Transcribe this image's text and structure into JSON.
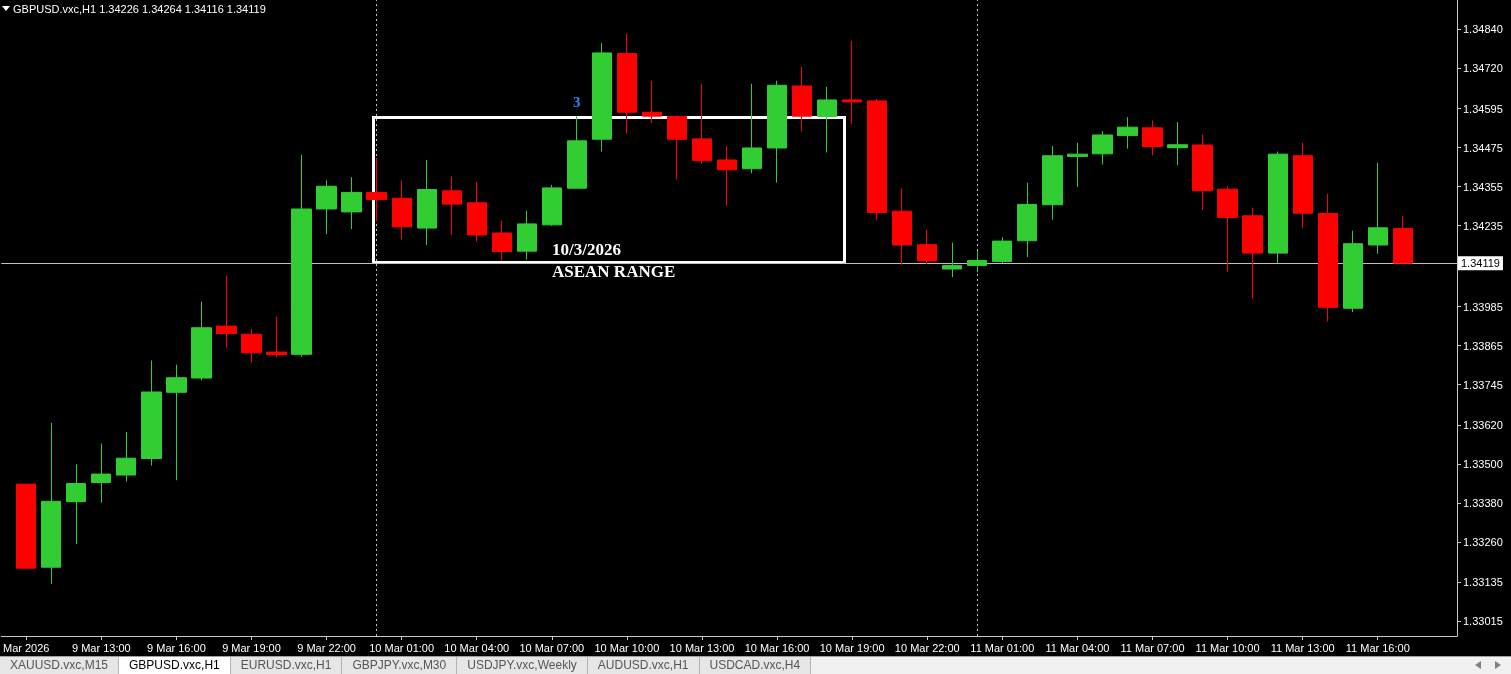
{
  "chart_data": {
    "type": "candlestick",
    "title": "GBPUSD.vxc,H1 1.34226 1.34264 1.34116 1.34119",
    "x": [
      "2026-03-09T10:00",
      "2026-03-09T11:00",
      "2026-03-09T12:00",
      "2026-03-09T13:00",
      "2026-03-09T14:00",
      "2026-03-09T15:00",
      "2026-03-09T16:00",
      "2026-03-09T17:00",
      "2026-03-09T18:00",
      "2026-03-09T19:00",
      "2026-03-09T20:00",
      "2026-03-09T21:00",
      "2026-03-09T22:00",
      "2026-03-09T23:00",
      "2026-03-10T00:00",
      "2026-03-10T01:00",
      "2026-03-10T02:00",
      "2026-03-10T03:00",
      "2026-03-10T04:00",
      "2026-03-10T05:00",
      "2026-03-10T06:00",
      "2026-03-10T07:00",
      "2026-03-10T08:00",
      "2026-03-10T09:00",
      "2026-03-10T10:00",
      "2026-03-10T11:00",
      "2026-03-10T12:00",
      "2026-03-10T13:00",
      "2026-03-10T14:00",
      "2026-03-10T15:00",
      "2026-03-10T16:00",
      "2026-03-10T17:00",
      "2026-03-10T18:00",
      "2026-03-10T19:00",
      "2026-03-10T20:00",
      "2026-03-10T21:00",
      "2026-03-10T22:00",
      "2026-03-10T23:00",
      "2026-03-11T00:00",
      "2026-03-11T01:00",
      "2026-03-11T02:00",
      "2026-03-11T03:00",
      "2026-03-11T04:00",
      "2026-03-11T05:00",
      "2026-03-11T06:00",
      "2026-03-11T07:00",
      "2026-03-11T08:00",
      "2026-03-11T09:00",
      "2026-03-11T10:00",
      "2026-03-11T11:00",
      "2026-03-11T12:00",
      "2026-03-11T13:00",
      "2026-03-11T14:00",
      "2026-03-11T15:00",
      "2026-03-11T16:00",
      "2026-03-11T17:00"
    ],
    "ohlc": [
      [
        1.33438,
        1.33438,
        1.33179,
        1.33179
      ],
      [
        1.33182,
        1.33627,
        1.3313,
        1.33385
      ],
      [
        1.33384,
        1.33499,
        1.33253,
        1.3344
      ],
      [
        1.33443,
        1.33563,
        1.33381,
        1.33469
      ],
      [
        1.33466,
        1.33599,
        1.33446,
        1.33518
      ],
      [
        1.33517,
        1.33819,
        1.33495,
        1.33722
      ],
      [
        1.33721,
        1.33806,
        1.3345,
        1.33766
      ],
      [
        1.33765,
        1.34,
        1.33758,
        1.3392
      ],
      [
        1.33925,
        1.34081,
        1.33859,
        1.33902
      ],
      [
        1.339,
        1.33916,
        1.33813,
        1.33843
      ],
      [
        1.33845,
        1.33954,
        1.33828,
        1.33837
      ],
      [
        1.33838,
        1.34453,
        1.3383,
        1.34286
      ],
      [
        1.34286,
        1.34374,
        1.34209,
        1.34356
      ],
      [
        1.34277,
        1.34384,
        1.34224,
        1.34337
      ],
      [
        1.34337,
        1.34443,
        1.34249,
        1.34315
      ],
      [
        1.34319,
        1.34374,
        1.34192,
        1.34231
      ],
      [
        1.34227,
        1.34437,
        1.34175,
        1.34346
      ],
      [
        1.34342,
        1.34386,
        1.34206,
        1.34301
      ],
      [
        1.34305,
        1.34369,
        1.34186,
        1.34206
      ],
      [
        1.34212,
        1.3425,
        1.34127,
        1.34155
      ],
      [
        1.34156,
        1.3428,
        1.3413,
        1.3424
      ],
      [
        1.34237,
        1.3436,
        1.34234,
        1.34351
      ],
      [
        1.3435,
        1.34572,
        1.3435,
        1.34496
      ],
      [
        1.34501,
        1.34797,
        1.34463,
        1.34767
      ],
      [
        1.34765,
        1.34827,
        1.34518,
        1.34584
      ],
      [
        1.34584,
        1.34681,
        1.34551,
        1.34572
      ],
      [
        1.34571,
        1.34573,
        1.34377,
        1.34501
      ],
      [
        1.34502,
        1.34672,
        1.34425,
        1.34435
      ],
      [
        1.34437,
        1.3448,
        1.34297,
        1.34407
      ],
      [
        1.3441,
        1.34672,
        1.34396,
        1.34474
      ],
      [
        1.34474,
        1.34681,
        1.34367,
        1.34667
      ],
      [
        1.34665,
        1.34724,
        1.34525,
        1.34572
      ],
      [
        1.34571,
        1.34662,
        1.3446,
        1.34622
      ],
      [
        1.34622,
        1.34804,
        1.34548,
        1.34616
      ],
      [
        1.34619,
        1.34625,
        1.34253,
        1.34275
      ],
      [
        1.34279,
        1.34349,
        1.34113,
        1.34175
      ],
      [
        1.34176,
        1.34222,
        1.34116,
        1.34126
      ],
      [
        1.34101,
        1.34182,
        1.34076,
        1.34112
      ],
      [
        1.34112,
        1.34157,
        1.34091,
        1.34127
      ],
      [
        1.34124,
        1.34199,
        1.34119,
        1.34187
      ],
      [
        1.34188,
        1.34367,
        1.34138,
        1.343
      ],
      [
        1.34299,
        1.3448,
        1.34253,
        1.3445
      ],
      [
        1.34448,
        1.3449,
        1.34354,
        1.34455
      ],
      [
        1.34456,
        1.34526,
        1.34423,
        1.34514
      ],
      [
        1.34512,
        1.34569,
        1.34472,
        1.34538
      ],
      [
        1.34536,
        1.34559,
        1.34451,
        1.34478
      ],
      [
        1.34475,
        1.34554,
        1.34421,
        1.34484
      ],
      [
        1.34483,
        1.34515,
        1.34283,
        1.34343
      ],
      [
        1.34347,
        1.34357,
        1.34093,
        1.3426
      ],
      [
        1.34265,
        1.3429,
        1.34009,
        1.3415
      ],
      [
        1.3415,
        1.34463,
        1.34119,
        1.34455
      ],
      [
        1.3445,
        1.3449,
        1.34227,
        1.34273
      ],
      [
        1.34272,
        1.34332,
        1.33939,
        1.33983
      ],
      [
        1.3398,
        1.34219,
        1.33968,
        1.34179
      ],
      [
        1.34175,
        1.34428,
        1.34148,
        1.34228
      ],
      [
        1.34226,
        1.34264,
        1.34116,
        1.34119
      ]
    ],
    "colors": [
      "#ff0000",
      "#32cd32",
      "#32cd32",
      "#32cd32",
      "#32cd32",
      "#32cd32",
      "#32cd32",
      "#32cd32",
      "#ff0000",
      "#ff0000",
      "#ff0000",
      "#32cd32",
      "#32cd32",
      "#32cd32",
      "#ff0000",
      "#ff0000",
      "#32cd32",
      "#ff0000",
      "#ff0000",
      "#ff0000",
      "#32cd32",
      "#32cd32",
      "#32cd32",
      "#32cd32",
      "#ff0000",
      "#ff0000",
      "#ff0000",
      "#ff0000",
      "#ff0000",
      "#32cd32",
      "#32cd32",
      "#ff0000",
      "#32cd32",
      "#ff0000",
      "#ff0000",
      "#ff0000",
      "#ff0000",
      "#32cd32",
      "#32cd32",
      "#32cd32",
      "#32cd32",
      "#32cd32",
      "#32cd32",
      "#32cd32",
      "#32cd32",
      "#ff0000",
      "#32cd32",
      "#ff0000",
      "#ff0000",
      "#ff0000",
      "#32cd32",
      "#ff0000",
      "#ff0000",
      "#32cd32",
      "#32cd32",
      "#ff0000"
    ],
    "xlim": [
      "2026-03-09T09:00",
      "2026-03-11T19:10"
    ],
    "xticks": [
      {
        "value": "2026-03-09T10:00",
        "label": "Mar 2026"
      },
      {
        "value": "2026-03-09T13:00",
        "label": "9 Mar 13:00"
      },
      {
        "value": "2026-03-09T16:00",
        "label": "9 Mar 16:00"
      },
      {
        "value": "2026-03-09T19:00",
        "label": "9 Mar 19:00"
      },
      {
        "value": "2026-03-09T22:00",
        "label": "9 Mar 22:00"
      },
      {
        "value": "2026-03-10T01:00",
        "label": "10 Mar 01:00"
      },
      {
        "value": "2026-03-10T04:00",
        "label": "10 Mar 04:00"
      },
      {
        "value": "2026-03-10T07:00",
        "label": "10 Mar 07:00"
      },
      {
        "value": "2026-03-10T10:00",
        "label": "10 Mar 10:00"
      },
      {
        "value": "2026-03-10T13:00",
        "label": "10 Mar 13:00"
      },
      {
        "value": "2026-03-10T16:00",
        "label": "10 Mar 16:00"
      },
      {
        "value": "2026-03-10T19:00",
        "label": "10 Mar 19:00"
      },
      {
        "value": "2026-03-10T22:00",
        "label": "10 Mar 22:00"
      },
      {
        "value": "2026-03-11T01:00",
        "label": "11 Mar 01:00"
      },
      {
        "value": "2026-03-11T04:00",
        "label": "11 Mar 04:00"
      },
      {
        "value": "2026-03-11T07:00",
        "label": "11 Mar 07:00"
      },
      {
        "value": "2026-03-11T10:00",
        "label": "11 Mar 10:00"
      },
      {
        "value": "2026-03-11T13:00",
        "label": "11 Mar 13:00"
      },
      {
        "value": "2026-03-11T16:00",
        "label": "11 Mar 16:00"
      }
    ],
    "ylim": [
      1.3297,
      1.3493
    ],
    "yticks": [
      {
        "value": 1.3484,
        "label": "1.34840"
      },
      {
        "value": 1.3472,
        "label": "1.34720"
      },
      1.34595,
      1.34475,
      1.34355,
      1.34235,
      1.33985,
      1.33865,
      1.33745,
      {
        "value": 1.3362,
        "label": "1.33620"
      },
      {
        "value": 1.335,
        "label": "1.33500"
      },
      {
        "value": 1.3338,
        "label": "1.33380"
      },
      {
        "value": 1.3326,
        "label": "1.33260"
      },
      1.33135,
      1.33015
    ],
    "ref_lines": [
      {
        "axis": "y",
        "value": 1.34119,
        "label": "1.34119",
        "color": "#c0c0c0"
      },
      {
        "axis": "x",
        "value": "2026-03-10T00:00",
        "color": "#c0c0c0",
        "line_style": "dotted"
      },
      {
        "axis": "x",
        "value": "2026-03-11T00:00",
        "color": "#c0c0c0",
        "line_style": "dotted"
      }
    ],
    "annotations": [
      {
        "text": "3",
        "x": "2026-03-10T08:00",
        "y": 1.34572
      },
      "10/3/2026",
      "ASEAN RANGE",
      "XAUUSD.vxc,M15",
      "GBPUSD.vxc,H1",
      "EURUSD.vxc,H1",
      "GBPJPY.vxc,M30",
      "USDJPY.vxc,Weekly",
      "AUDUSD.vxc,H1",
      "USDCAD.vxc,H4"
    ],
    "grid": false
  }
}
